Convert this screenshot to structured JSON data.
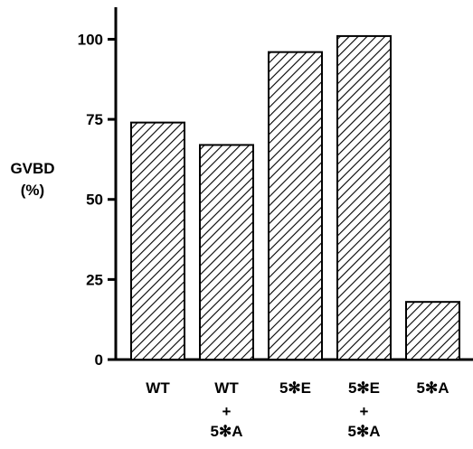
{
  "chart_data": {
    "type": "bar",
    "ylabel_line1": "GVBD",
    "ylabel_line2": "(%)",
    "ylim": [
      0,
      110
    ],
    "yticks": [
      0,
      25,
      50,
      75,
      100
    ],
    "yticklabels": [
      "0",
      "25",
      "50",
      "75",
      "100"
    ],
    "grid": false,
    "bar_fill": "hatched",
    "categories": [
      {
        "lines": [
          "WT"
        ]
      },
      {
        "lines": [
          "WT",
          "+",
          "5✻A"
        ]
      },
      {
        "lines": [
          "5✻E"
        ]
      },
      {
        "lines": [
          "5✻E",
          "+",
          "5✻A"
        ]
      },
      {
        "lines": [
          "5✻A"
        ]
      }
    ],
    "values": [
      74,
      67,
      96,
      101,
      18
    ]
  }
}
